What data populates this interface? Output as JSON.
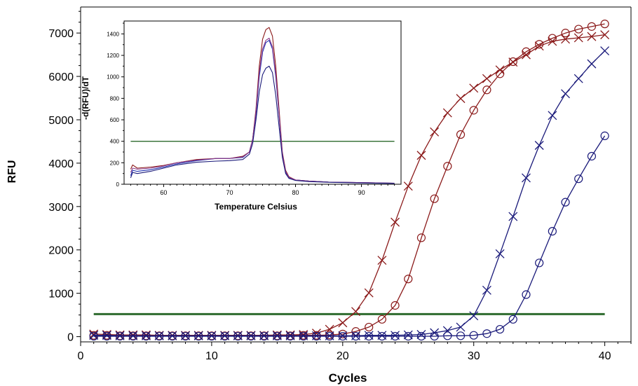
{
  "chart_data": [
    {
      "type": "line",
      "title": "",
      "xlabel": "Cycles",
      "ylabel": "RFU",
      "xlim": [
        0,
        42
      ],
      "ylim": [
        -120,
        7600
      ],
      "xticks": [
        0,
        10,
        20,
        30,
        40
      ],
      "yticks": [
        0,
        1000,
        2000,
        3000,
        4000,
        5000,
        6000,
        7000
      ],
      "threshold": 520,
      "colors": {
        "threshold": "#2e6b2e",
        "dark_red": "#8b1a1a",
        "red": "#c02020",
        "navy": "#1a1a7a",
        "blue": "#1f2fb0",
        "purple": "#8a3a8a"
      },
      "series": [
        {
          "marker": "x",
          "color": "#8b1a1a",
          "x": [
            1,
            2,
            3,
            4,
            5,
            6,
            7,
            8,
            9,
            10,
            11,
            12,
            13,
            14,
            15,
            16,
            17,
            18,
            19,
            20,
            21,
            22,
            23,
            24,
            25,
            26,
            27,
            28,
            29,
            30,
            31,
            32,
            33,
            34,
            35,
            36,
            37,
            38,
            39,
            40
          ],
          "y": [
            60,
            50,
            40,
            40,
            40,
            30,
            30,
            30,
            30,
            30,
            30,
            30,
            30,
            30,
            40,
            40,
            50,
            80,
            170,
            320,
            580,
            1010,
            1760,
            2640,
            3470,
            4180,
            4720,
            5160,
            5490,
            5730,
            5950,
            6150,
            6330,
            6500,
            6700,
            6810,
            6860,
            6890,
            6920,
            6960
          ]
        },
        {
          "marker": "o",
          "color": "#8b1a1a",
          "x": [
            1,
            2,
            3,
            4,
            5,
            6,
            7,
            8,
            9,
            10,
            11,
            12,
            13,
            14,
            15,
            16,
            17,
            18,
            19,
            20,
            21,
            22,
            23,
            24,
            25,
            26,
            27,
            28,
            29,
            30,
            31,
            32,
            33,
            34,
            35,
            36,
            37,
            38,
            39,
            40
          ],
          "y": [
            30,
            30,
            20,
            20,
            20,
            20,
            20,
            20,
            20,
            20,
            20,
            20,
            20,
            20,
            20,
            20,
            30,
            30,
            40,
            60,
            120,
            220,
            400,
            720,
            1330,
            2280,
            3180,
            3930,
            4660,
            5220,
            5690,
            6060,
            6340,
            6570,
            6740,
            6880,
            7000,
            7090,
            7150,
            7210
          ]
        },
        {
          "marker": "x",
          "color": "#1a1a7a",
          "x": [
            1,
            2,
            3,
            4,
            5,
            6,
            7,
            8,
            9,
            10,
            11,
            12,
            13,
            14,
            15,
            16,
            17,
            18,
            19,
            20,
            21,
            22,
            23,
            24,
            25,
            26,
            27,
            28,
            29,
            30,
            31,
            32,
            33,
            34,
            35,
            36,
            37,
            38,
            39,
            40
          ],
          "y": [
            30,
            30,
            20,
            20,
            20,
            20,
            20,
            20,
            20,
            20,
            20,
            20,
            20,
            20,
            20,
            20,
            20,
            20,
            20,
            20,
            20,
            30,
            30,
            30,
            40,
            50,
            90,
            140,
            220,
            480,
            1070,
            1910,
            2770,
            3660,
            4410,
            5100,
            5600,
            5950,
            6290,
            6590
          ]
        },
        {
          "marker": "o",
          "color": "#1a1a7a",
          "x": [
            1,
            2,
            3,
            4,
            5,
            6,
            7,
            8,
            9,
            10,
            11,
            12,
            13,
            14,
            15,
            16,
            17,
            18,
            19,
            20,
            21,
            22,
            23,
            24,
            25,
            26,
            27,
            28,
            29,
            30,
            31,
            32,
            33,
            34,
            35,
            36,
            37,
            38,
            39,
            40
          ],
          "y": [
            10,
            10,
            10,
            10,
            10,
            10,
            10,
            10,
            10,
            10,
            10,
            10,
            10,
            10,
            10,
            10,
            10,
            10,
            10,
            10,
            10,
            10,
            10,
            10,
            10,
            10,
            10,
            20,
            20,
            30,
            70,
            170,
            400,
            970,
            1700,
            2430,
            3100,
            3640,
            4160,
            4630
          ]
        }
      ]
    },
    {
      "type": "line",
      "title": "",
      "xlabel": "Temperature Celsius",
      "ylabel": "-d(RFU)/dT",
      "xlim": [
        54,
        96
      ],
      "ylim": [
        0,
        1520
      ],
      "xticks": [
        60,
        70,
        80,
        90
      ],
      "yticks": [
        0,
        200,
        400,
        600,
        800,
        1000,
        1200,
        1400
      ],
      "threshold": 400,
      "colors": {
        "threshold": "#2e6b2e"
      },
      "series": [
        {
          "color": "#8b1a1a",
          "x": [
            55,
            55.3,
            56,
            58,
            60,
            62,
            65,
            68,
            70,
            72,
            73,
            73.5,
            74,
            74.5,
            75,
            75.5,
            76,
            76.5,
            77,
            77.5,
            78,
            78.5,
            79,
            80,
            82,
            85,
            90,
            95
          ],
          "y": [
            140,
            180,
            150,
            160,
            175,
            200,
            230,
            240,
            240,
            260,
            300,
            420,
            700,
            1100,
            1350,
            1440,
            1460,
            1380,
            1100,
            700,
            300,
            130,
            70,
            40,
            30,
            20,
            15,
            10
          ]
        },
        {
          "color": "#1f2fb0",
          "x": [
            55,
            55.3,
            56,
            58,
            60,
            62,
            65,
            68,
            70,
            72,
            73,
            73.5,
            74,
            74.5,
            75,
            75.5,
            76,
            76.5,
            77,
            77.5,
            78,
            78.5,
            79,
            80,
            82,
            85,
            90,
            95
          ],
          "y": [
            80,
            130,
            120,
            135,
            160,
            190,
            220,
            240,
            240,
            250,
            300,
            420,
            650,
            1000,
            1230,
            1320,
            1340,
            1260,
            1000,
            650,
            280,
            110,
            60,
            40,
            30,
            20,
            15,
            10
          ]
        },
        {
          "color": "#8a3a8a",
          "x": [
            55,
            55.3,
            56,
            58,
            60,
            62,
            65,
            68,
            70,
            72,
            73,
            73.5,
            74,
            74.5,
            75,
            75.5,
            76,
            76.5,
            77,
            77.5,
            78,
            78.5,
            79,
            80,
            82,
            85,
            90,
            95
          ],
          "y": [
            110,
            150,
            140,
            150,
            170,
            200,
            225,
            240,
            240,
            255,
            300,
            420,
            680,
            1040,
            1260,
            1340,
            1360,
            1280,
            1030,
            660,
            290,
            120,
            65,
            40,
            30,
            20,
            15,
            10
          ]
        },
        {
          "color": "#1a1a7a",
          "x": [
            55,
            55.3,
            56,
            58,
            60,
            62,
            65,
            68,
            70,
            72,
            73,
            73.5,
            74,
            74.5,
            75,
            75.5,
            76,
            76.5,
            77,
            77.5,
            78,
            78.5,
            79,
            80,
            82,
            85,
            90,
            95
          ],
          "y": [
            60,
            110,
            100,
            120,
            150,
            180,
            205,
            215,
            220,
            230,
            280,
            380,
            600,
            860,
            1020,
            1080,
            1100,
            1040,
            830,
            540,
            250,
            100,
            55,
            35,
            25,
            18,
            12,
            8
          ]
        }
      ]
    }
  ]
}
